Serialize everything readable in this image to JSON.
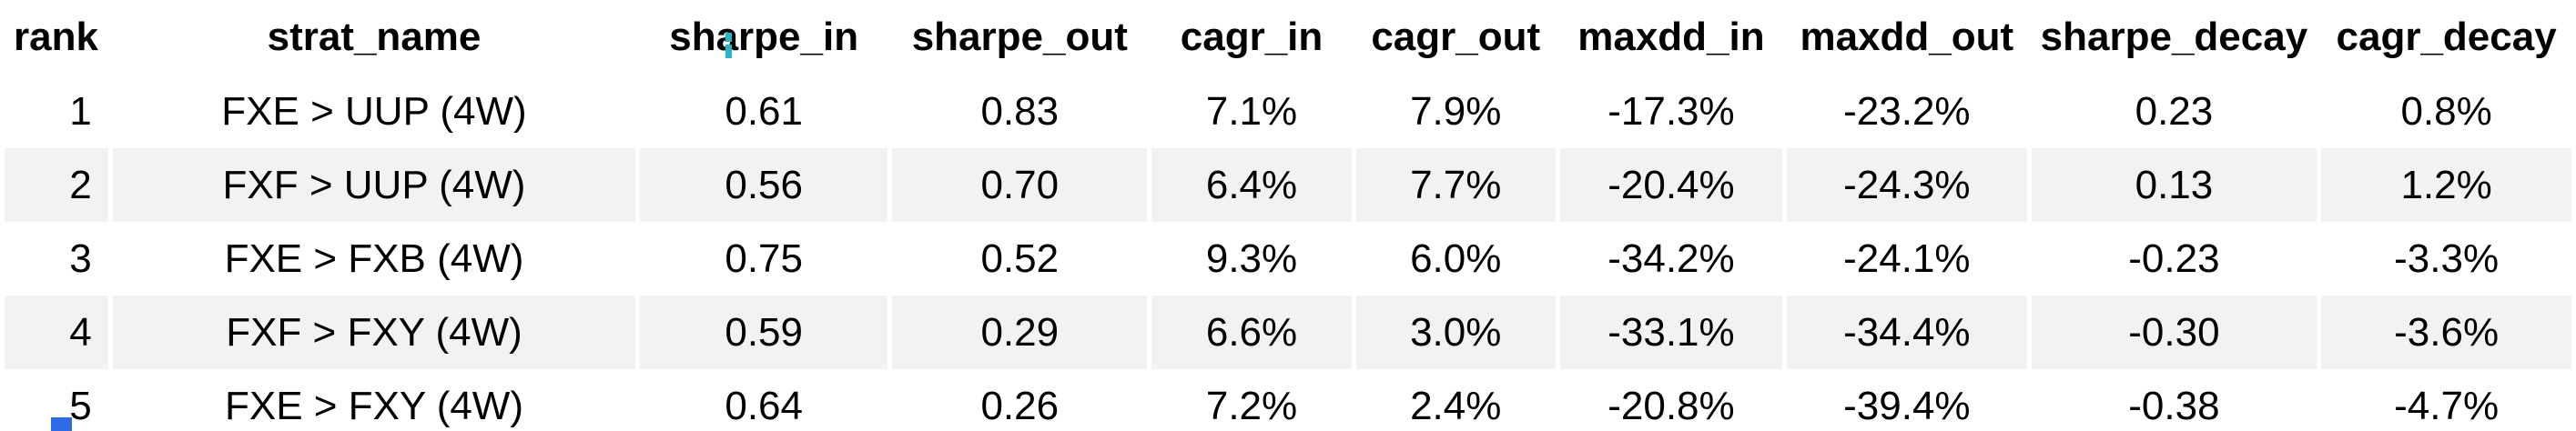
{
  "table": {
    "columns": [
      "rank",
      "strat_name",
      "sharpe_in",
      "sharpe_out",
      "cagr_in",
      "cagr_out",
      "maxdd_in",
      "maxdd_out",
      "sharpe_decay",
      "cagr_decay"
    ],
    "column_widths_pct": [
      4.1,
      20.7,
      9.8,
      10.1,
      7.9,
      7.9,
      8.8,
      9.5,
      11.3,
      9.9
    ],
    "rows": [
      [
        "1",
        "FXE > UUP (4W)",
        "0.61",
        "0.83",
        "7.1%",
        "7.9%",
        "-17.3%",
        "-23.2%",
        "0.23",
        "0.8%"
      ],
      [
        "2",
        "FXF > UUP (4W)",
        "0.56",
        "0.70",
        "6.4%",
        "7.7%",
        "-20.4%",
        "-24.3%",
        "0.13",
        "1.2%"
      ],
      [
        "3",
        "FXE > FXB (4W)",
        "0.75",
        "0.52",
        "9.3%",
        "6.0%",
        "-34.2%",
        "-24.1%",
        "-0.23",
        "-3.3%"
      ],
      [
        "4",
        "FXF > FXY (4W)",
        "0.59",
        "0.29",
        "6.6%",
        "3.0%",
        "-33.1%",
        "-34.4%",
        "-0.30",
        "-3.6%"
      ],
      [
        "5",
        "FXE > FXY (4W)",
        "0.64",
        "0.26",
        "7.2%",
        "2.4%",
        "-20.8%",
        "-39.4%",
        "-0.38",
        "-4.7%"
      ]
    ]
  },
  "colors": {
    "background": "#ffffff",
    "text": "#000000",
    "row_stripe": "#f2f2f2",
    "ibeam_cursor_teal": "#2ab7c4",
    "corner_selection_blue": "#2e6be6"
  }
}
